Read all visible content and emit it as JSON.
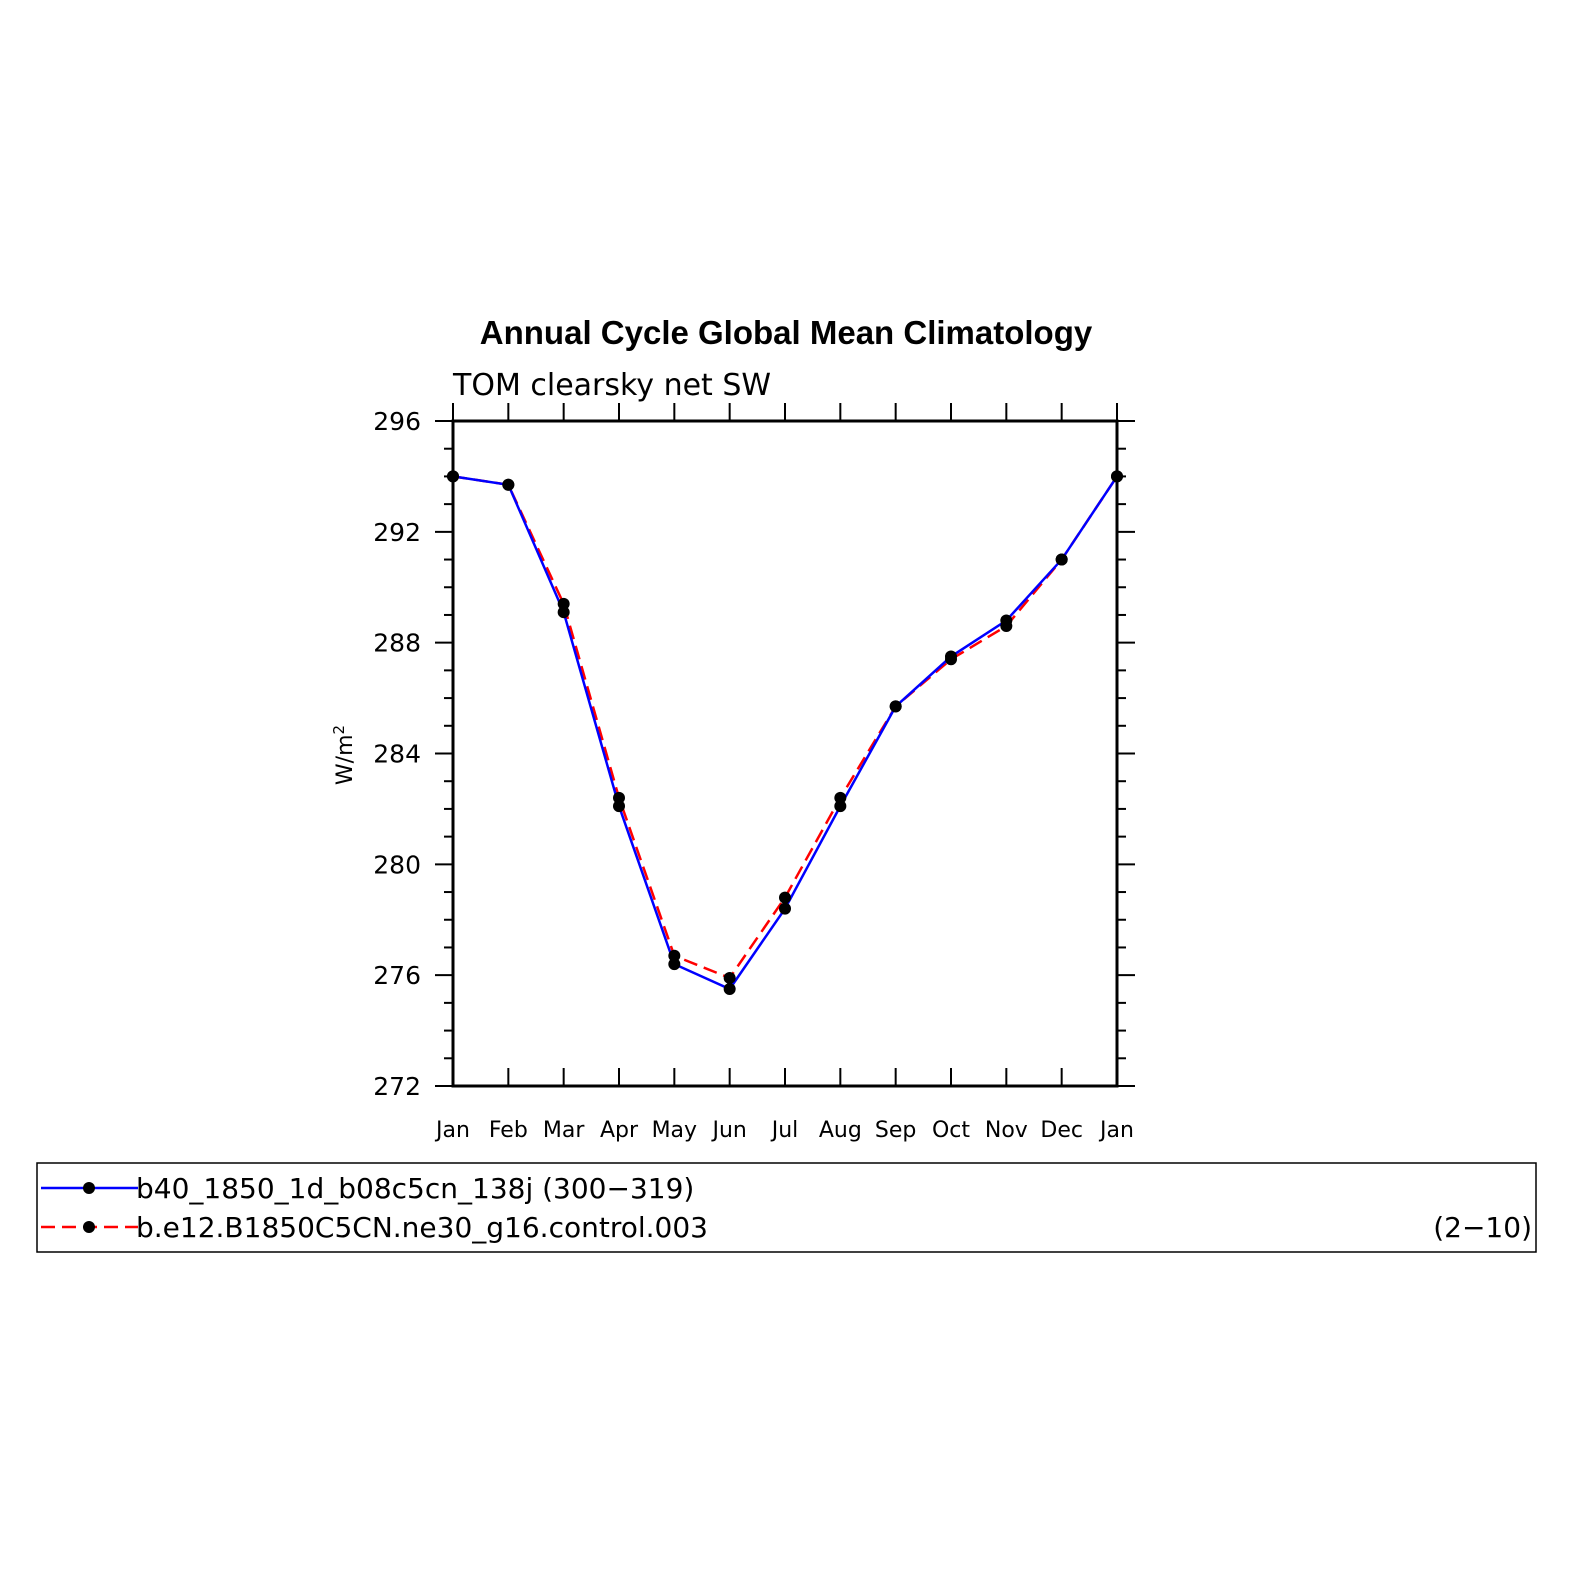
{
  "chart_data": {
    "type": "line",
    "title": "Annual Cycle Global Mean Climatology",
    "subtitle": "TOM clearsky net SW",
    "ylabel": "W/m",
    "ylabel_sup": "2",
    "ylim": [
      272,
      296
    ],
    "yticks": [
      272,
      276,
      280,
      284,
      288,
      292,
      296
    ],
    "categories": [
      "Jan",
      "Feb",
      "Mar",
      "Apr",
      "May",
      "Jun",
      "Jul",
      "Aug",
      "Sep",
      "Oct",
      "Nov",
      "Dec",
      "Jan"
    ],
    "series": [
      {
        "name": "b40_1850_1d_b08c5cn_138j (300−319)",
        "color": "#0000ff",
        "dash": "solid",
        "values": [
          294.0,
          293.7,
          289.1,
          282.1,
          276.4,
          275.5,
          278.4,
          282.1,
          285.7,
          287.5,
          288.8,
          291.0,
          294.0
        ]
      },
      {
        "name": "b.e12.B1850C5CN.ne30_g16.control.003",
        "name_suffix": "(2−10)",
        "color": "#ff0000",
        "dash": "dashed",
        "values": [
          294.0,
          293.7,
          289.4,
          282.4,
          276.7,
          275.9,
          278.8,
          282.4,
          285.7,
          287.4,
          288.6,
          291.0,
          294.0
        ]
      }
    ],
    "legend_placement": "bottom",
    "grid": false
  }
}
